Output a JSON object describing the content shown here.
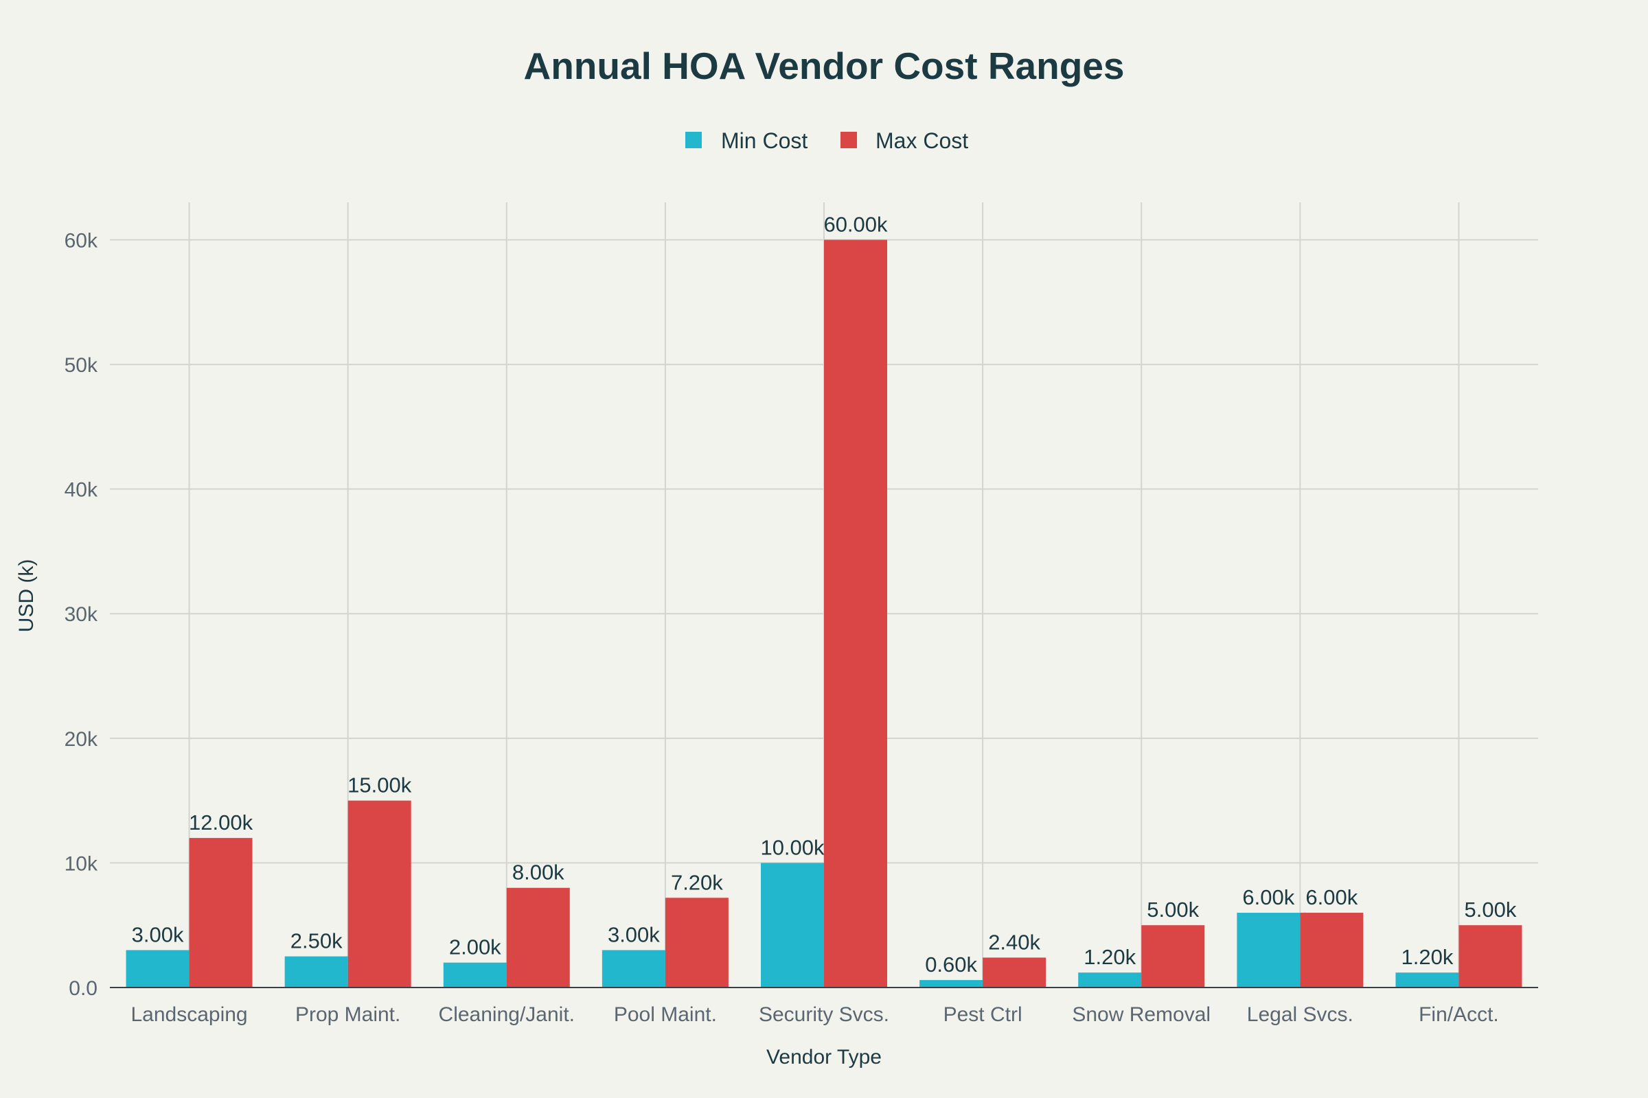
{
  "chart_data": {
    "type": "bar",
    "title": "Annual HOA Vendor Cost Ranges",
    "xlabel": "Vendor Type",
    "ylabel": "USD (k)",
    "ylim": [
      0,
      63000
    ],
    "yticks": [
      0,
      10000,
      20000,
      30000,
      40000,
      50000,
      60000
    ],
    "ytick_labels": [
      "0.0",
      "10k",
      "20k",
      "30k",
      "40k",
      "50k",
      "60k"
    ],
    "grid": true,
    "legend_position": "top-center",
    "categories": [
      "Landscaping",
      "Prop Maint.",
      "Cleaning/Janit.",
      "Pool Maint.",
      "Security Svcs.",
      "Pest Ctrl",
      "Snow Removal",
      "Legal Svcs.",
      "Fin/Acct."
    ],
    "series": [
      {
        "name": "Min Cost",
        "color": "#22b7cc",
        "values": [
          3000,
          2500,
          2000,
          3000,
          10000,
          600,
          1200,
          6000,
          1200
        ],
        "labels": [
          "3.00k",
          "2.50k",
          "2.00k",
          "3.00k",
          "10.00k",
          "0.60k",
          "1.20k",
          "6.00k",
          "1.20k"
        ]
      },
      {
        "name": "Max Cost",
        "color": "#da4546",
        "values": [
          12000,
          15000,
          8000,
          7200,
          60000,
          2400,
          5000,
          6000,
          5000
        ],
        "labels": [
          "12.00k",
          "15.00k",
          "8.00k",
          "7.20k",
          "60.00k",
          "2.40k",
          "5.00k",
          "6.00k",
          "5.00k"
        ]
      }
    ]
  }
}
